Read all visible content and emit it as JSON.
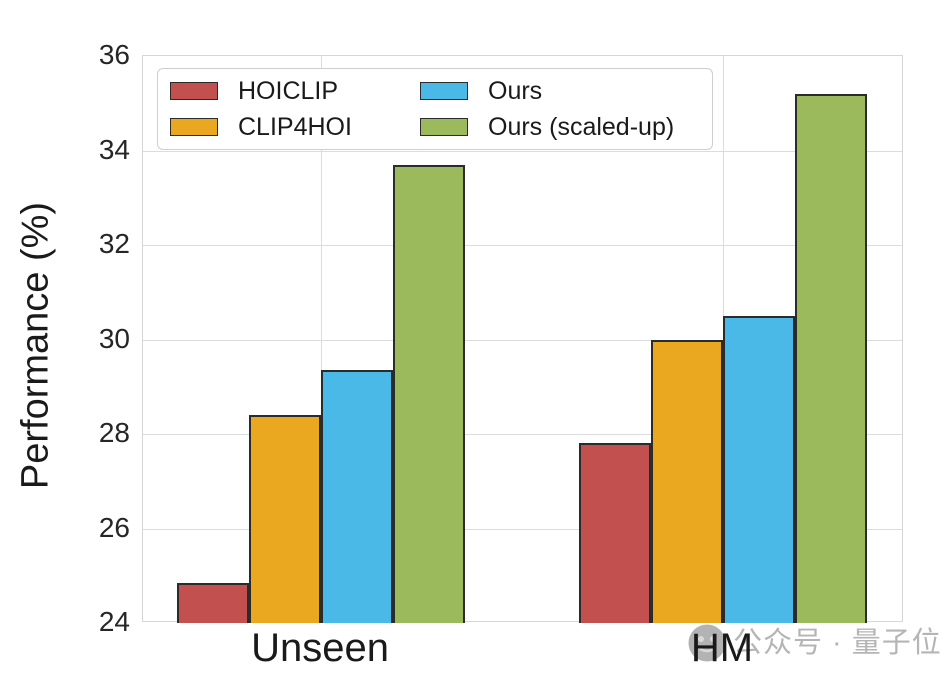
{
  "figure": {
    "watermark_text": "公众号 · 量子位",
    "background_color": "#ffffff",
    "grid_color": "#dcdcdc",
    "text_color": "#1a1a1a"
  },
  "chart_data": {
    "type": "bar",
    "title": "",
    "xlabel": "",
    "ylabel": "Performance (%)",
    "categories": [
      "Unseen",
      "HM"
    ],
    "series": [
      {
        "name": "HOICLIP",
        "color": "#c2504e",
        "values": [
          24.85,
          27.8
        ]
      },
      {
        "name": "CLIP4HOI",
        "color": "#e9a820",
        "values": [
          28.4,
          30.0
        ]
      },
      {
        "name": "Ours",
        "color": "#4bb9e8",
        "values": [
          29.35,
          30.5
        ]
      },
      {
        "name": "Ours (scaled-up)",
        "color": "#9aba5c",
        "values": [
          33.7,
          35.2
        ]
      }
    ],
    "ylim": [
      24,
      36
    ],
    "yticks": [
      24,
      26,
      28,
      30,
      32,
      34,
      36
    ],
    "grid": true,
    "bar_edge_color": "#2b2b2b",
    "legend_position": "upper-left"
  }
}
